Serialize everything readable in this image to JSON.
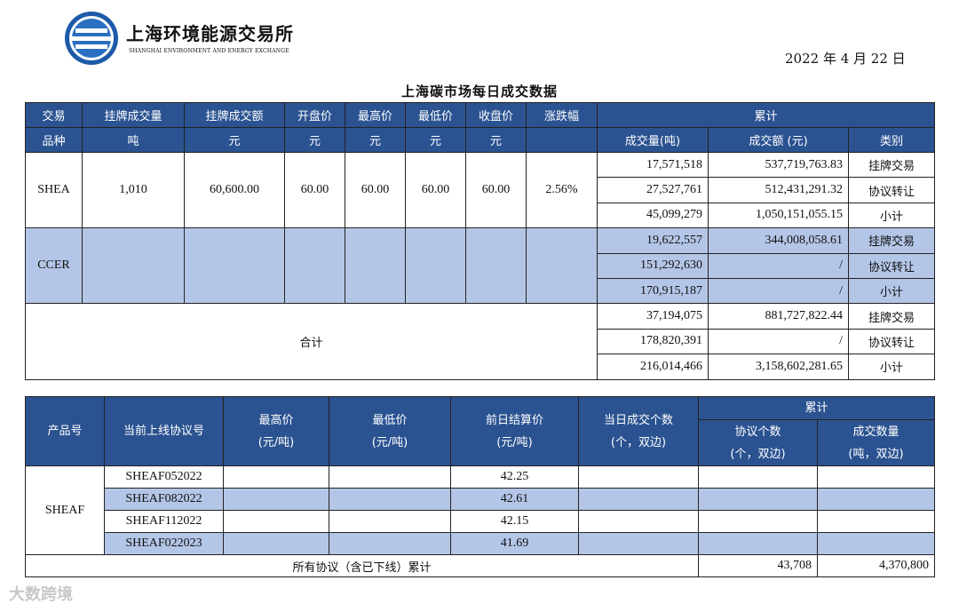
{
  "header": {
    "org_cn": "上海环境能源交易所",
    "org_en": "SHANGHAI ENVIRONMENT AND ENERGY EXCHANGE",
    "date": "2022 年 4 月 22 日",
    "title": "上海碳市场每日成交数据"
  },
  "t1": {
    "h_variety_1": "交易",
    "h_variety_2": "品种",
    "h_listed_vol": "挂牌成交量",
    "h_listed_amt": "挂牌成交额",
    "h_open": "开盘价",
    "h_high": "最高价",
    "h_low": "最低价",
    "h_close": "收盘价",
    "h_change": "涨跌幅",
    "h_cumulative": "累计",
    "u_vol": "吨",
    "u_amt": "元",
    "u_open": "元",
    "u_high": "元",
    "u_low": "元",
    "u_close": "元",
    "h_cum_vol": "成交量(吨)",
    "h_cum_amt": "成交额 (元)",
    "h_category": "类别",
    "shea": {
      "name": "SHEA",
      "listed_vol": "1,010",
      "listed_amt": "60,600.00",
      "open": "60.00",
      "high": "60.00",
      "low": "60.00",
      "close": "60.00",
      "change": "2.56%",
      "rows": [
        {
          "vol": "17,571,518",
          "amt": "537,719,763.83",
          "cat": "挂牌交易"
        },
        {
          "vol": "27,527,761",
          "amt": "512,431,291.32",
          "cat": "协议转让"
        },
        {
          "vol": "45,099,279",
          "amt": "1,050,151,055.15",
          "cat": "小计"
        }
      ]
    },
    "ccer": {
      "name": "CCER",
      "rows": [
        {
          "vol": "19,622,557",
          "amt": "344,008,058.61",
          "cat": "挂牌交易"
        },
        {
          "vol": "151,292,630",
          "amt": "/",
          "cat": "协议转让"
        },
        {
          "vol": "170,915,187",
          "amt": "/",
          "cat": "小计"
        }
      ]
    },
    "total": {
      "label": "合计",
      "rows": [
        {
          "vol": "37,194,075",
          "amt": "881,727,822.44",
          "cat": "挂牌交易"
        },
        {
          "vol": "178,820,391",
          "amt": "/",
          "cat": "协议转让"
        },
        {
          "vol": "216,014,466",
          "amt": "3,158,602,281.65",
          "cat": "小计"
        }
      ]
    }
  },
  "t2": {
    "h_product": "产品号",
    "h_contract": "当前上线协议号",
    "h_high_1": "最高价",
    "h_high_2": "(元/吨)",
    "h_low_1": "最低价",
    "h_low_2": "(元/吨)",
    "h_settle_1": "前日结算价",
    "h_settle_2": "(元/吨)",
    "h_count_1": "当日成交个数",
    "h_count_2": "(个，双边)",
    "h_cumulative": "累计",
    "h_cum_count_1": "协议个数",
    "h_cum_count_2": "(个，双边)",
    "h_cum_qty_1": "成交数量",
    "h_cum_qty_2": "(吨，双边)",
    "product": "SHEAF",
    "rows": [
      {
        "contract": "SHEAF052022",
        "settle": "42.25"
      },
      {
        "contract": "SHEAF082022",
        "settle": "42.61"
      },
      {
        "contract": "SHEAF112022",
        "settle": "42.15"
      },
      {
        "contract": "SHEAF022023",
        "settle": "41.69"
      }
    ],
    "total_label": "所有协议（含已下线）累计",
    "total_count": "43,708",
    "total_qty": "4,370,800"
  },
  "watermark": "大数跨境",
  "colors": {
    "header_blue": "#2b5391",
    "row_blue": "#b4c6e7"
  }
}
